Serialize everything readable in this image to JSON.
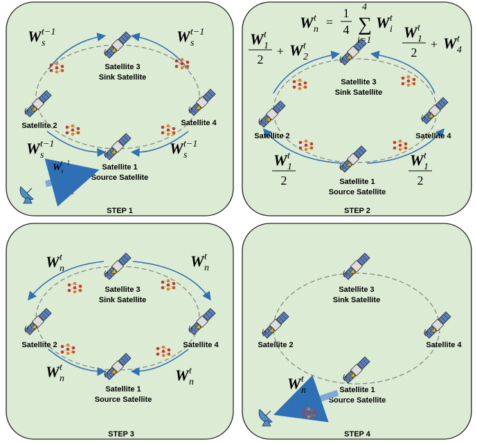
{
  "panels": [
    {
      "step": "STEP 1",
      "sat3": {
        "name": "Satellite 3",
        "role": "Sink Satellite"
      },
      "sat2": {
        "name": "Satellite 2"
      },
      "sat4": {
        "name": "Satellite 4"
      },
      "sat1": {
        "name": "Satellite 1",
        "role": "Source Satellite"
      },
      "weights": [
        {
          "W": "W",
          "sub": "s",
          "sup": "t−1"
        },
        {
          "W": "W",
          "sub": "s",
          "sup": "t−1"
        },
        {
          "W": "W",
          "sub": "s",
          "sup": "t−1"
        },
        {
          "W": "W",
          "sub": "s",
          "sup": "t−1"
        }
      ],
      "ground": {
        "W": "W",
        "sub": "s",
        "sup": "t−1"
      }
    },
    {
      "step": "STEP 2",
      "sat3": {
        "name": "Satellite 3",
        "role": "Sink Satellite"
      },
      "sat2": {
        "name": "Satellite 2"
      },
      "sat4": {
        "name": "Satellite 4"
      },
      "sat1": {
        "name": "Satellite 1",
        "role": "Source Satellite"
      },
      "top": {
        "lhs": {
          "W": "W",
          "sub": "n",
          "sup": "t"
        },
        "eq": "=",
        "num": "1",
        "den": "4",
        "sum": "∑",
        "upper": "4",
        "lower": "i=1",
        "term": {
          "W": "W",
          "sub": "i",
          "sup": "t"
        }
      },
      "left": {
        "num": {
          "W": "W",
          "sub": "1",
          "sup": "t"
        },
        "den": "2",
        "plus": "+",
        "term": {
          "W": "W",
          "sub": "2",
          "sup": "t"
        }
      },
      "right": {
        "num": {
          "W": "W",
          "sub": "1",
          "sup": "t"
        },
        "den": "2",
        "plus": "+",
        "term": {
          "W": "W",
          "sub": "4",
          "sup": "t"
        }
      },
      "bottomLeft": {
        "num": {
          "W": "W",
          "sub": "1",
          "sup": "t"
        },
        "den": "2"
      },
      "bottomRight": {
        "num": {
          "W": "W",
          "sub": "1",
          "sup": "t"
        },
        "den": "2"
      }
    },
    {
      "step": "STEP 3",
      "sat3": {
        "name": "Satellite 3",
        "role": "Sink Satellite"
      },
      "sat2": {
        "name": "Satellite 2"
      },
      "sat4": {
        "name": "Satellite 4"
      },
      "sat1": {
        "name": "Satellite 1",
        "role": "Source Satellite"
      },
      "weights": [
        {
          "W": "W",
          "sub": "n",
          "sup": "t"
        },
        {
          "W": "W",
          "sub": "n",
          "sup": "t"
        },
        {
          "W": "W",
          "sub": "n",
          "sup": "t"
        },
        {
          "W": "W",
          "sub": "n",
          "sup": "t"
        }
      ]
    },
    {
      "step": "STEP 4",
      "sat2": {
        "name": "Satellite 2"
      },
      "sat1": {
        "name": "Satellite 1",
        "role": "Source Satellite"
      },
      "sat3": {
        "name": "Satellite 3",
        "role": "Sink Satellite"
      },
      "sat4": {
        "name": "Satellite 4"
      },
      "ground": {
        "W": "W",
        "sub": "n",
        "sup": "t"
      }
    }
  ]
}
